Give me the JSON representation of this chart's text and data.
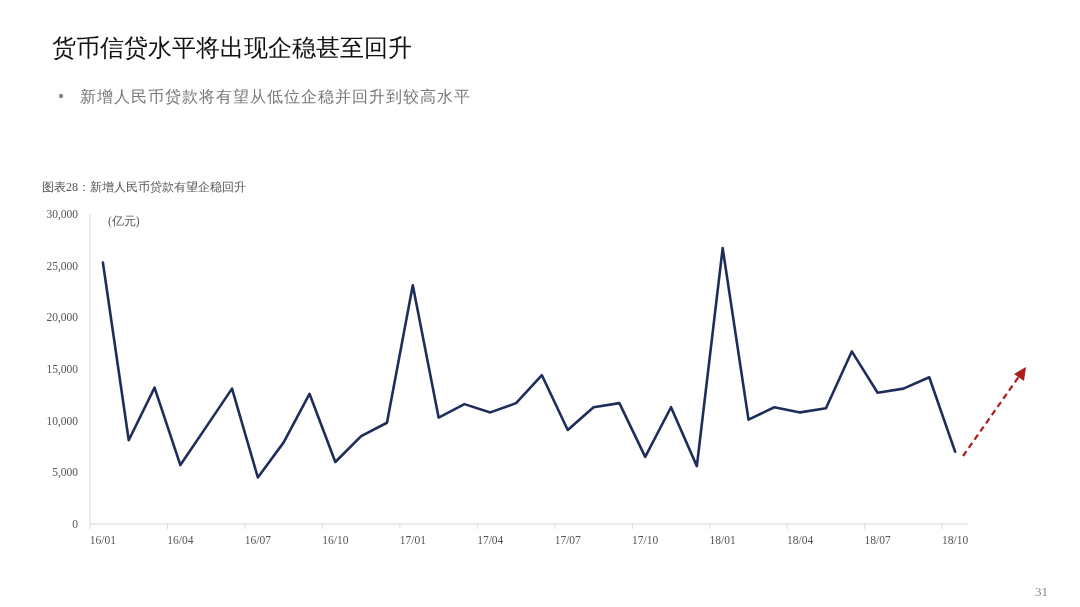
{
  "chart_data": {
    "type": "line",
    "title": "货币信贷水平将出现企稳甚至回升",
    "subtitle": "新增人民币贷款将有望从低位企稳并回升到较高水平",
    "ylabel": "(亿元)",
    "annotations": [
      "图表28：新增人民币贷款有望企稳回升",
      "31"
    ],
    "categories": [
      "16/01",
      null,
      null,
      "16/04",
      null,
      null,
      "16/07",
      null,
      null,
      "16/10",
      null,
      null,
      "17/01",
      null,
      null,
      "17/04",
      null,
      null,
      "17/07",
      null,
      null,
      "17/10",
      null,
      null,
      "18/01",
      null,
      null,
      "18/04",
      null,
      null,
      "18/07",
      null,
      null,
      "18/10"
    ],
    "series": [
      {
        "color": "#1f2d5a",
        "values": [
          25300,
          8100,
          13200,
          5700,
          9400,
          13100,
          4500,
          7900,
          12600,
          6000,
          8500,
          9800,
          23100,
          10300,
          11600,
          10800,
          11700,
          14400,
          9100,
          11300,
          11700,
          6500,
          11300,
          5600,
          26700,
          10100,
          11300,
          10800,
          11200,
          16700,
          12700,
          13100,
          14200,
          7000
        ]
      }
    ],
    "ylim": [
      0,
      30000
    ],
    "yticks": [
      {
        "value": 0,
        "label": "0"
      },
      {
        "value": 5000,
        "label": "5,000"
      },
      {
        "value": 10000,
        "label": "10,000"
      },
      {
        "value": 15000,
        "label": "15,000"
      },
      {
        "value": 20000,
        "label": "20,000"
      },
      {
        "value": 25000,
        "label": "25,000"
      },
      {
        "value": 30000,
        "label": "30,000"
      }
    ],
    "grid": false,
    "marker": "none",
    "line_style": "solid"
  }
}
